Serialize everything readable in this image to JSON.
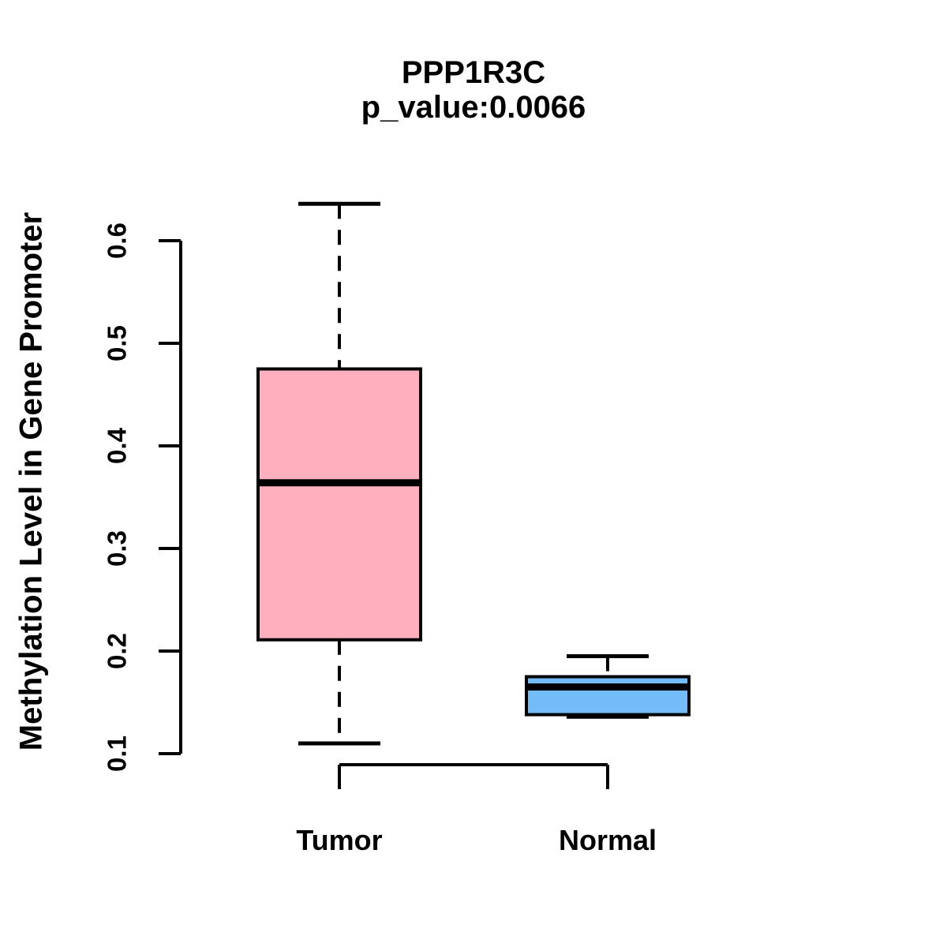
{
  "chart_data": {
    "type": "boxplot",
    "title": "PPP1R3C",
    "subtitle": "p_value:0.0066",
    "ylabel": "Methylation Level in Gene Promoter",
    "xlabel": "",
    "categories": [
      "Tumor",
      "Normal"
    ],
    "ylim": [
      0.1,
      0.6
    ],
    "yticks": [
      0.1,
      0.2,
      0.3,
      0.4,
      0.5,
      0.6
    ],
    "ytick_labels": [
      "0.1",
      "0.2",
      "0.3",
      "0.4",
      "0.5",
      "0.6"
    ],
    "grid": false,
    "legend": false,
    "whisker_line_style": "dashed",
    "box_border_color": "#000000",
    "median_color": "#000000",
    "series": [
      {
        "name": "Tumor",
        "color": "#ffafbe",
        "whisker_low": 0.11,
        "q1": 0.211,
        "median": 0.364,
        "q3": 0.475,
        "whisker_high": 0.636
      },
      {
        "name": "Normal",
        "color": "#73bcf7",
        "whisker_low": 0.136,
        "q1": 0.138,
        "median": 0.165,
        "q3": 0.175,
        "whisker_high": 0.195
      }
    ]
  }
}
